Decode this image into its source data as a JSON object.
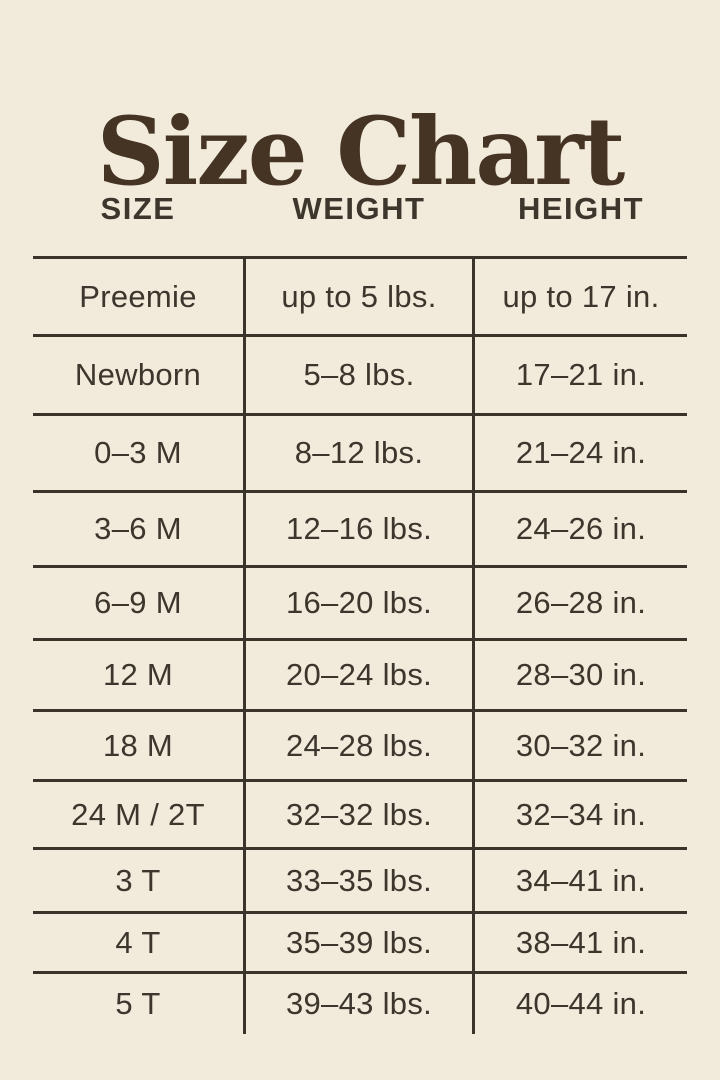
{
  "title": "Size Chart",
  "chart_data": {
    "type": "table",
    "title": "Size Chart",
    "columns": [
      "SIZE",
      "WEIGHT",
      "HEIGHT"
    ],
    "rows": [
      [
        "Preemie",
        "up to 5 lbs.",
        "up to 17 in."
      ],
      [
        "Newborn",
        "5–8 lbs.",
        "17–21 in."
      ],
      [
        "0–3 M",
        "8–12 lbs.",
        "21–24 in."
      ],
      [
        "3–6 M",
        "12–16 lbs.",
        "24–26 in."
      ],
      [
        "6–9 M",
        "16–20 lbs.",
        "26–28 in."
      ],
      [
        "12 M",
        "20–24 lbs.",
        "28–30 in."
      ],
      [
        "18 M",
        "24–28 lbs.",
        "30–32 in."
      ],
      [
        "24 M / 2T",
        "32–32 lbs.",
        "32–34 in."
      ],
      [
        "3 T",
        "33–35 lbs.",
        "34–41 in."
      ],
      [
        "4 T",
        "35–39 lbs.",
        "38–41 in."
      ],
      [
        "5 T",
        "39–43 lbs.",
        "40–44 in."
      ]
    ],
    "layout": {
      "grid": "interior rules only, no outer left/right/bottom border",
      "header_inside_grid": false
    }
  },
  "colors": {
    "background": "#F2EBDC",
    "title_text": "#453424",
    "table_text": "#3C362D",
    "rule_lines": "#3B342B"
  }
}
